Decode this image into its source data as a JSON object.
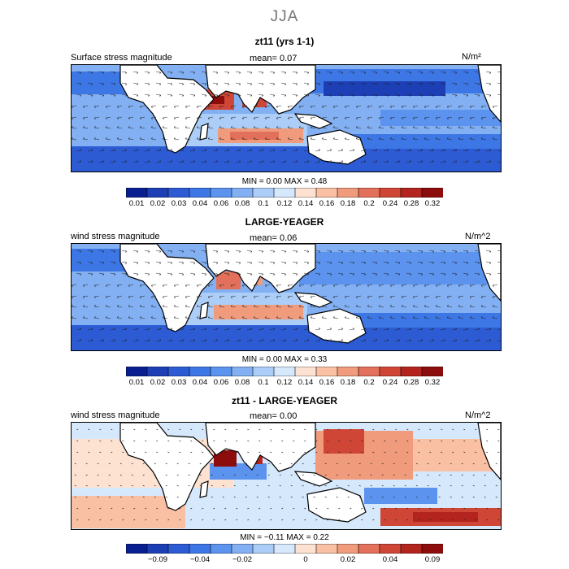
{
  "page_title": "JJA",
  "colors": [
    "#0a1f8f",
    "#1c3fb5",
    "#2c5bd4",
    "#3d77e6",
    "#5b93ee",
    "#82b0f2",
    "#abcdf7",
    "#d6e8fb",
    "#fde2d2",
    "#f9c0a4",
    "#f09b7c",
    "#e2705a",
    "#cf4636",
    "#b4241e",
    "#8c0d0c"
  ],
  "land_color": "#ffffff",
  "panels": [
    {
      "title": "zt11 (yrs 1-1)",
      "label": "Surface stress magnitude",
      "mean": "mean=    0.07",
      "units": "N/m²",
      "minmax": "MIN =    0.00  MAX =    0.48",
      "colorbar_ticks": [
        "0.01",
        "0.02",
        "0.03",
        "0.04",
        "0.06",
        "0.08",
        "0.1",
        "0.12",
        "0.14",
        "0.16",
        "0.18",
        "0.2",
        "0.24",
        "0.28",
        "0.32"
      ]
    },
    {
      "title": "LARGE-YEAGER",
      "label": "wind stress magnitude",
      "mean": "mean=    0.06",
      "units": "N/m^2",
      "minmax": "MIN =    0.00  MAX =    0.33",
      "colorbar_ticks": [
        "0.01",
        "0.02",
        "0.03",
        "0.04",
        "0.06",
        "0.08",
        "0.1",
        "0.12",
        "0.14",
        "0.16",
        "0.18",
        "0.2",
        "0.24",
        "0.28",
        "0.32"
      ]
    },
    {
      "title": "zt11 - LARGE-YEAGER",
      "label": "wind stress magnitude",
      "mean": "mean=    0.00",
      "units": "N/m^2",
      "minmax": "MIN =  −0.11  MAX =    0.22",
      "colorbar_ticks": [
        "−0.09",
        "−0.04",
        "−0.02",
        "0",
        "0.02",
        "0.04",
        "0.09"
      ]
    }
  ],
  "chart_data": [
    {
      "type": "heatmap",
      "title": "zt11 (yrs 1-1)",
      "variable": "Surface stress magnitude",
      "units": "N/m²",
      "mean": 0.07,
      "min": 0.0,
      "max": 0.48,
      "levels": [
        0.01,
        0.02,
        0.03,
        0.04,
        0.06,
        0.08,
        0.1,
        0.12,
        0.14,
        0.16,
        0.18,
        0.2,
        0.24,
        0.28,
        0.32
      ]
    },
    {
      "type": "heatmap",
      "title": "LARGE-YEAGER",
      "variable": "wind stress magnitude",
      "units": "N/m^2",
      "mean": 0.06,
      "min": 0.0,
      "max": 0.33,
      "levels": [
        0.01,
        0.02,
        0.03,
        0.04,
        0.06,
        0.08,
        0.1,
        0.12,
        0.14,
        0.16,
        0.18,
        0.2,
        0.24,
        0.28,
        0.32
      ]
    },
    {
      "type": "heatmap",
      "title": "zt11 - LARGE-YEAGER",
      "variable": "wind stress magnitude",
      "units": "N/m^2",
      "mean": 0.0,
      "min": -0.11,
      "max": 0.22,
      "levels": [
        -0.09,
        -0.04,
        -0.02,
        0,
        0.02,
        0.04,
        0.09
      ]
    }
  ]
}
